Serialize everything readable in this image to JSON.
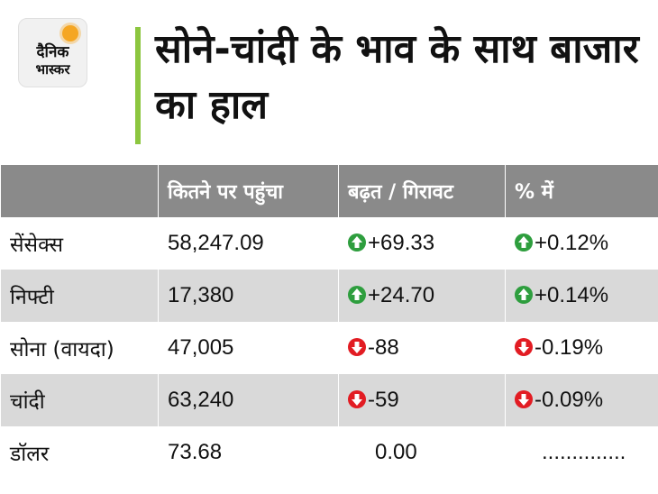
{
  "logo": {
    "line1": "दैनिक",
    "line2": "भास्कर"
  },
  "title": "सोने-चांदी के भाव के साथ बाजार का हाल",
  "colors": {
    "accent_bar": "#8cc63f",
    "header_bg": "#8a8a8a",
    "row_alt_bg": "#d9d9d9",
    "up": "#2e9e3e",
    "down": "#e21c23"
  },
  "table": {
    "headers": [
      "",
      "कितने पर पहुंचा",
      "बढ़त / गिरावट",
      "% में"
    ],
    "rows": [
      {
        "name": "सेंसेक्स",
        "value": "58,247.09",
        "change": "+69.33",
        "change_dir": "up",
        "pct": "+0.12%",
        "pct_dir": "up"
      },
      {
        "name": "निफ्टी",
        "value": "17,380",
        "change": "+24.70",
        "change_dir": "up",
        "pct": "+0.14%",
        "pct_dir": "up"
      },
      {
        "name": "सोना (वायदा)",
        "value": "47,005",
        "change": "-88",
        "change_dir": "down",
        "pct": "-0.19%",
        "pct_dir": "down"
      },
      {
        "name": "चांदी",
        "value": "63,240",
        "change": "-59",
        "change_dir": "down",
        "pct": "-0.09%",
        "pct_dir": "down"
      },
      {
        "name": "डॉलर",
        "value": "73.68",
        "change": "0.00",
        "change_dir": "none",
        "pct": "..............",
        "pct_dir": "none"
      }
    ]
  }
}
